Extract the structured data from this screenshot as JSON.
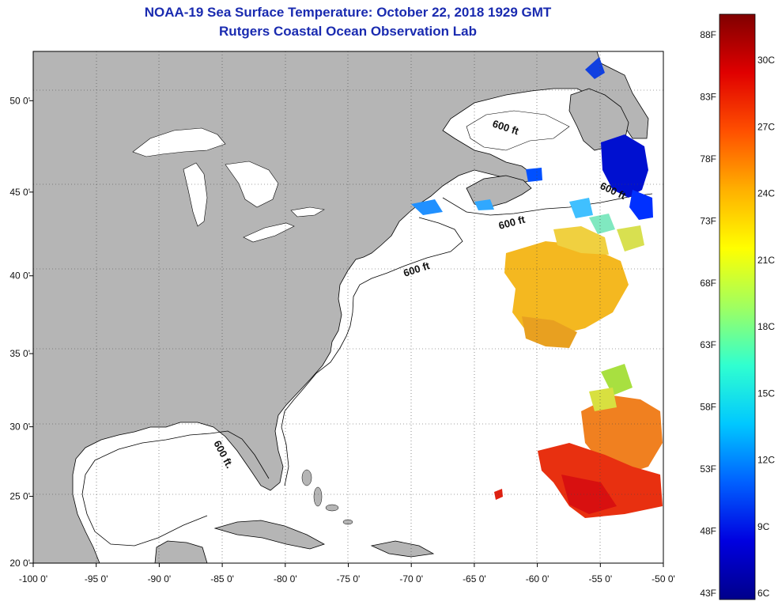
{
  "title": {
    "line1": "NOAA-19 Sea Surface Temperature:  October 22, 2018 1929 GMT",
    "line2": "Rutgers Coastal Ocean Observation Lab"
  },
  "colors": {
    "land": "#b5b5b5",
    "ocean": "#ffffff",
    "title": "#1a2bb0",
    "grid": "#444444"
  },
  "map": {
    "lon_range": [
      -100,
      -50
    ],
    "lat_range": [
      20,
      52.5
    ],
    "lon_labels": [
      {
        "value": -100,
        "label": "-100 0'"
      },
      {
        "value": -95,
        "label": "-95 0'"
      },
      {
        "value": -90,
        "label": "-90 0'"
      },
      {
        "value": -85,
        "label": "-85 0'"
      },
      {
        "value": -80,
        "label": "-80 0'"
      },
      {
        "value": -75,
        "label": "-75 0'"
      },
      {
        "value": -70,
        "label": "-70 0'"
      },
      {
        "value": -65,
        "label": "-65 0'"
      },
      {
        "value": -60,
        "label": "-60 0'"
      },
      {
        "value": -55,
        "label": "-55 0'"
      },
      {
        "value": -50,
        "label": "-50 0'"
      }
    ],
    "lat_labels": [
      {
        "value": 50,
        "label": "50 0'"
      },
      {
        "value": 45,
        "label": "45 0'"
      },
      {
        "value": 40,
        "label": "40 0'"
      },
      {
        "value": 35,
        "label": "35 0'"
      },
      {
        "value": 30,
        "label": "30 0'"
      },
      {
        "value": 25,
        "label": "25 0'"
      },
      {
        "value": 20,
        "label": "20 0'"
      }
    ],
    "contour_label": "600 ft",
    "contour_label_alt": "600 ft."
  },
  "colorbar": {
    "left_labels": [
      "88F",
      "83F",
      "78F",
      "73F",
      "68F",
      "63F",
      "58F",
      "53F",
      "48F",
      "43F"
    ],
    "right_labels": [
      "30C",
      "27C",
      "24C",
      "21C",
      "18C",
      "15C",
      "12C",
      "9C",
      "6C"
    ],
    "stops": [
      "#00008a",
      "#0000e0",
      "#0060ff",
      "#00c8ff",
      "#30ffd0",
      "#a0ff60",
      "#ffff00",
      "#ffb000",
      "#ff5000",
      "#e00000",
      "#800000"
    ]
  }
}
